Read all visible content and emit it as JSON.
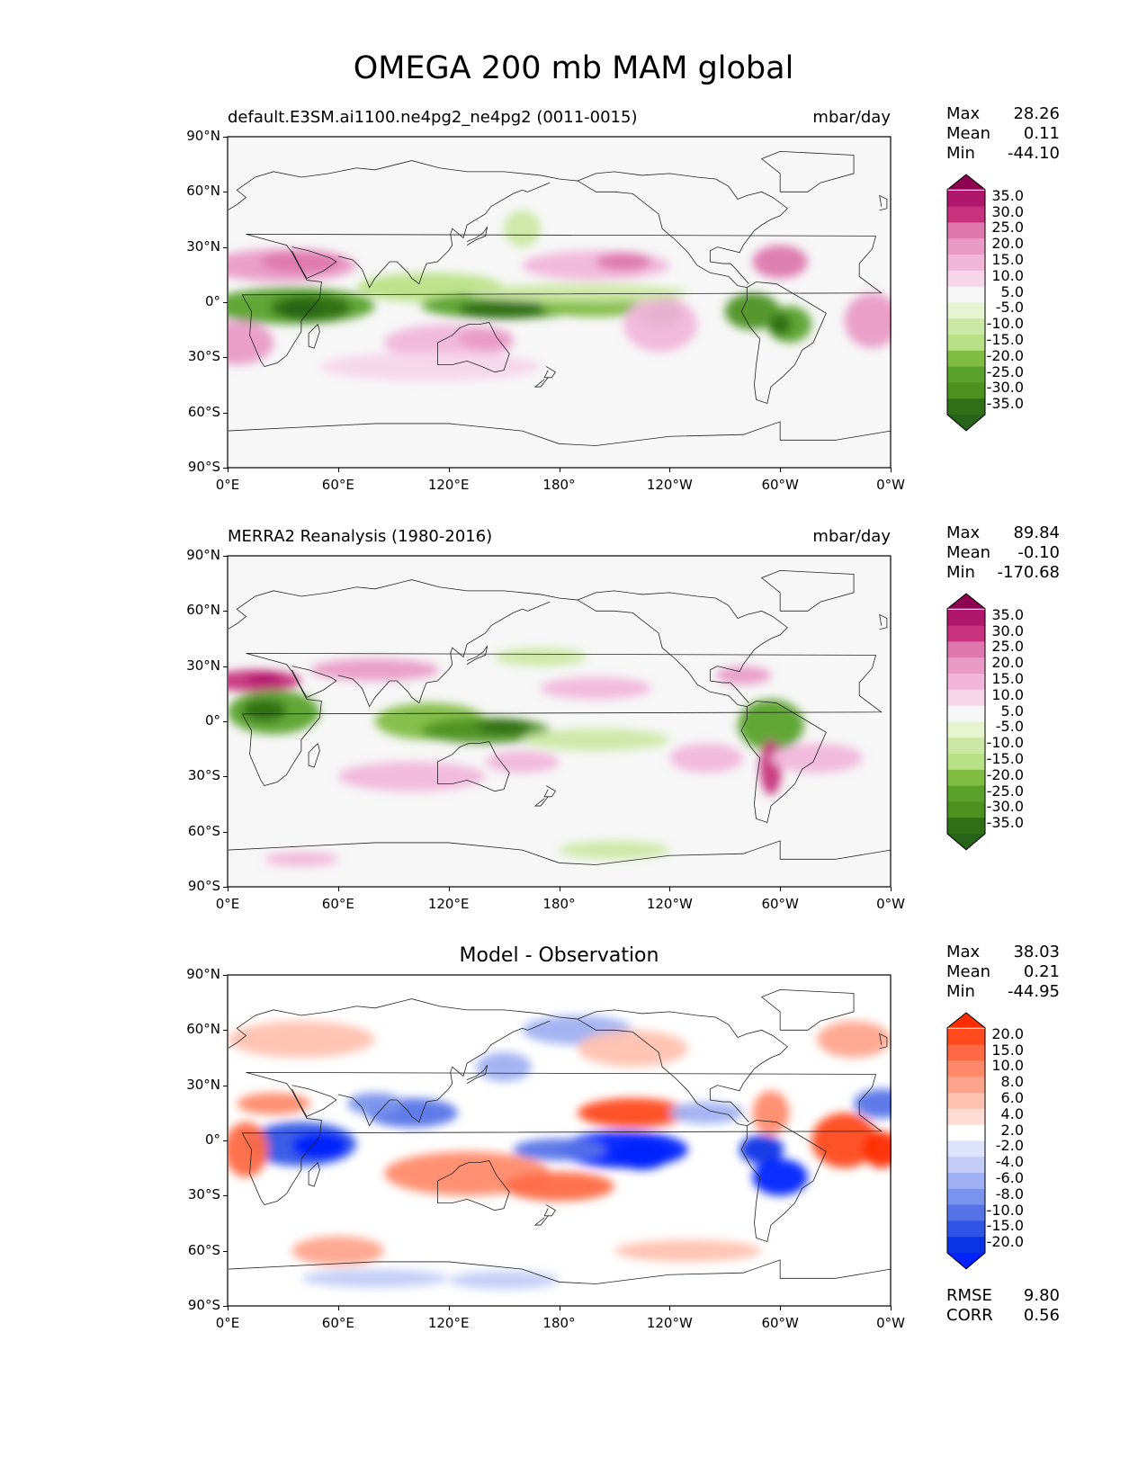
{
  "title": "OMEGA 200 mb MAM global",
  "panels": [
    {
      "left_title": "default.E3SM.ai1100.ne4pg2_ne4pg2 (0011-0015)",
      "right_title": "mbar/day",
      "center_title": "",
      "stats": [
        {
          "label": "Max",
          "value": "28.26"
        },
        {
          "label": "Mean",
          "value": "0.11"
        },
        {
          "label": "Min",
          "value": "-44.10"
        }
      ],
      "colorbar_levels": [
        "35.0",
        "30.0",
        "25.0",
        "20.0",
        "15.0",
        "10.0",
        "5.0",
        "-5.0",
        "-10.0",
        "-15.0",
        "-20.0",
        "-25.0",
        "-30.0",
        "-35.0"
      ],
      "colorbar_colors": [
        "#8e0152",
        "#b0166b",
        "#c7317d",
        "#de77ae",
        "#e99bc6",
        "#f1b6da",
        "#f7d6ea",
        "#f7f7f7",
        "#e6f5d0",
        "#cbe8a4",
        "#b8e186",
        "#7fbc41",
        "#5aa22c",
        "#4d9221",
        "#2f6f17",
        "#276419"
      ],
      "field": "model"
    },
    {
      "left_title": "MERRA2 Reanalysis (1980-2016)",
      "right_title": "mbar/day",
      "center_title": "",
      "stats": [
        {
          "label": "Max",
          "value": "89.84"
        },
        {
          "label": "Mean",
          "value": "-0.10"
        },
        {
          "label": "Min",
          "value": "-170.68"
        }
      ],
      "colorbar_levels": [
        "35.0",
        "30.0",
        "25.0",
        "20.0",
        "15.0",
        "10.0",
        "5.0",
        "-5.0",
        "-10.0",
        "-15.0",
        "-20.0",
        "-25.0",
        "-30.0",
        "-35.0"
      ],
      "colorbar_colors": [
        "#8e0152",
        "#b0166b",
        "#c7317d",
        "#de77ae",
        "#e99bc6",
        "#f1b6da",
        "#f7d6ea",
        "#f7f7f7",
        "#e6f5d0",
        "#cbe8a4",
        "#b8e186",
        "#7fbc41",
        "#5aa22c",
        "#4d9221",
        "#2f6f17",
        "#276419"
      ],
      "field": "obs"
    },
    {
      "left_title": "",
      "right_title": "",
      "center_title": "Model - Observation",
      "stats": [
        {
          "label": "Max",
          "value": "38.03"
        },
        {
          "label": "Mean",
          "value": "0.21"
        },
        {
          "label": "Min",
          "value": "-44.95"
        }
      ],
      "colorbar_levels": [
        "20.0",
        "15.0",
        "10.0",
        "8.0",
        "6.0",
        "4.0",
        "2.0",
        "-2.0",
        "-4.0",
        "-6.0",
        "-8.0",
        "-10.0",
        "-15.0",
        "-20.0"
      ],
      "colorbar_colors": [
        "#ff2d00",
        "#ff4a1e",
        "#ff6a44",
        "#ff8a6b",
        "#ffa48c",
        "#ffc1b0",
        "#ffdcd2",
        "#ffffff",
        "#dde3fb",
        "#c2ccf6",
        "#9eb0f1",
        "#7a93ec",
        "#5674e8",
        "#2f54e6",
        "#0a33e6",
        "#0022ff"
      ],
      "field": "diff",
      "extra_stats": [
        {
          "label": "RMSE",
          "value": "9.80"
        },
        {
          "label": "CORR",
          "value": "0.56"
        }
      ]
    }
  ],
  "lat_ticks": [
    "90°N",
    "60°N",
    "30°N",
    "0°",
    "30°S",
    "60°S",
    "90°S"
  ],
  "lon_ticks": [
    "0°E",
    "60°E",
    "120°E",
    "180°",
    "120°W",
    "60°W",
    "0°W"
  ]
}
